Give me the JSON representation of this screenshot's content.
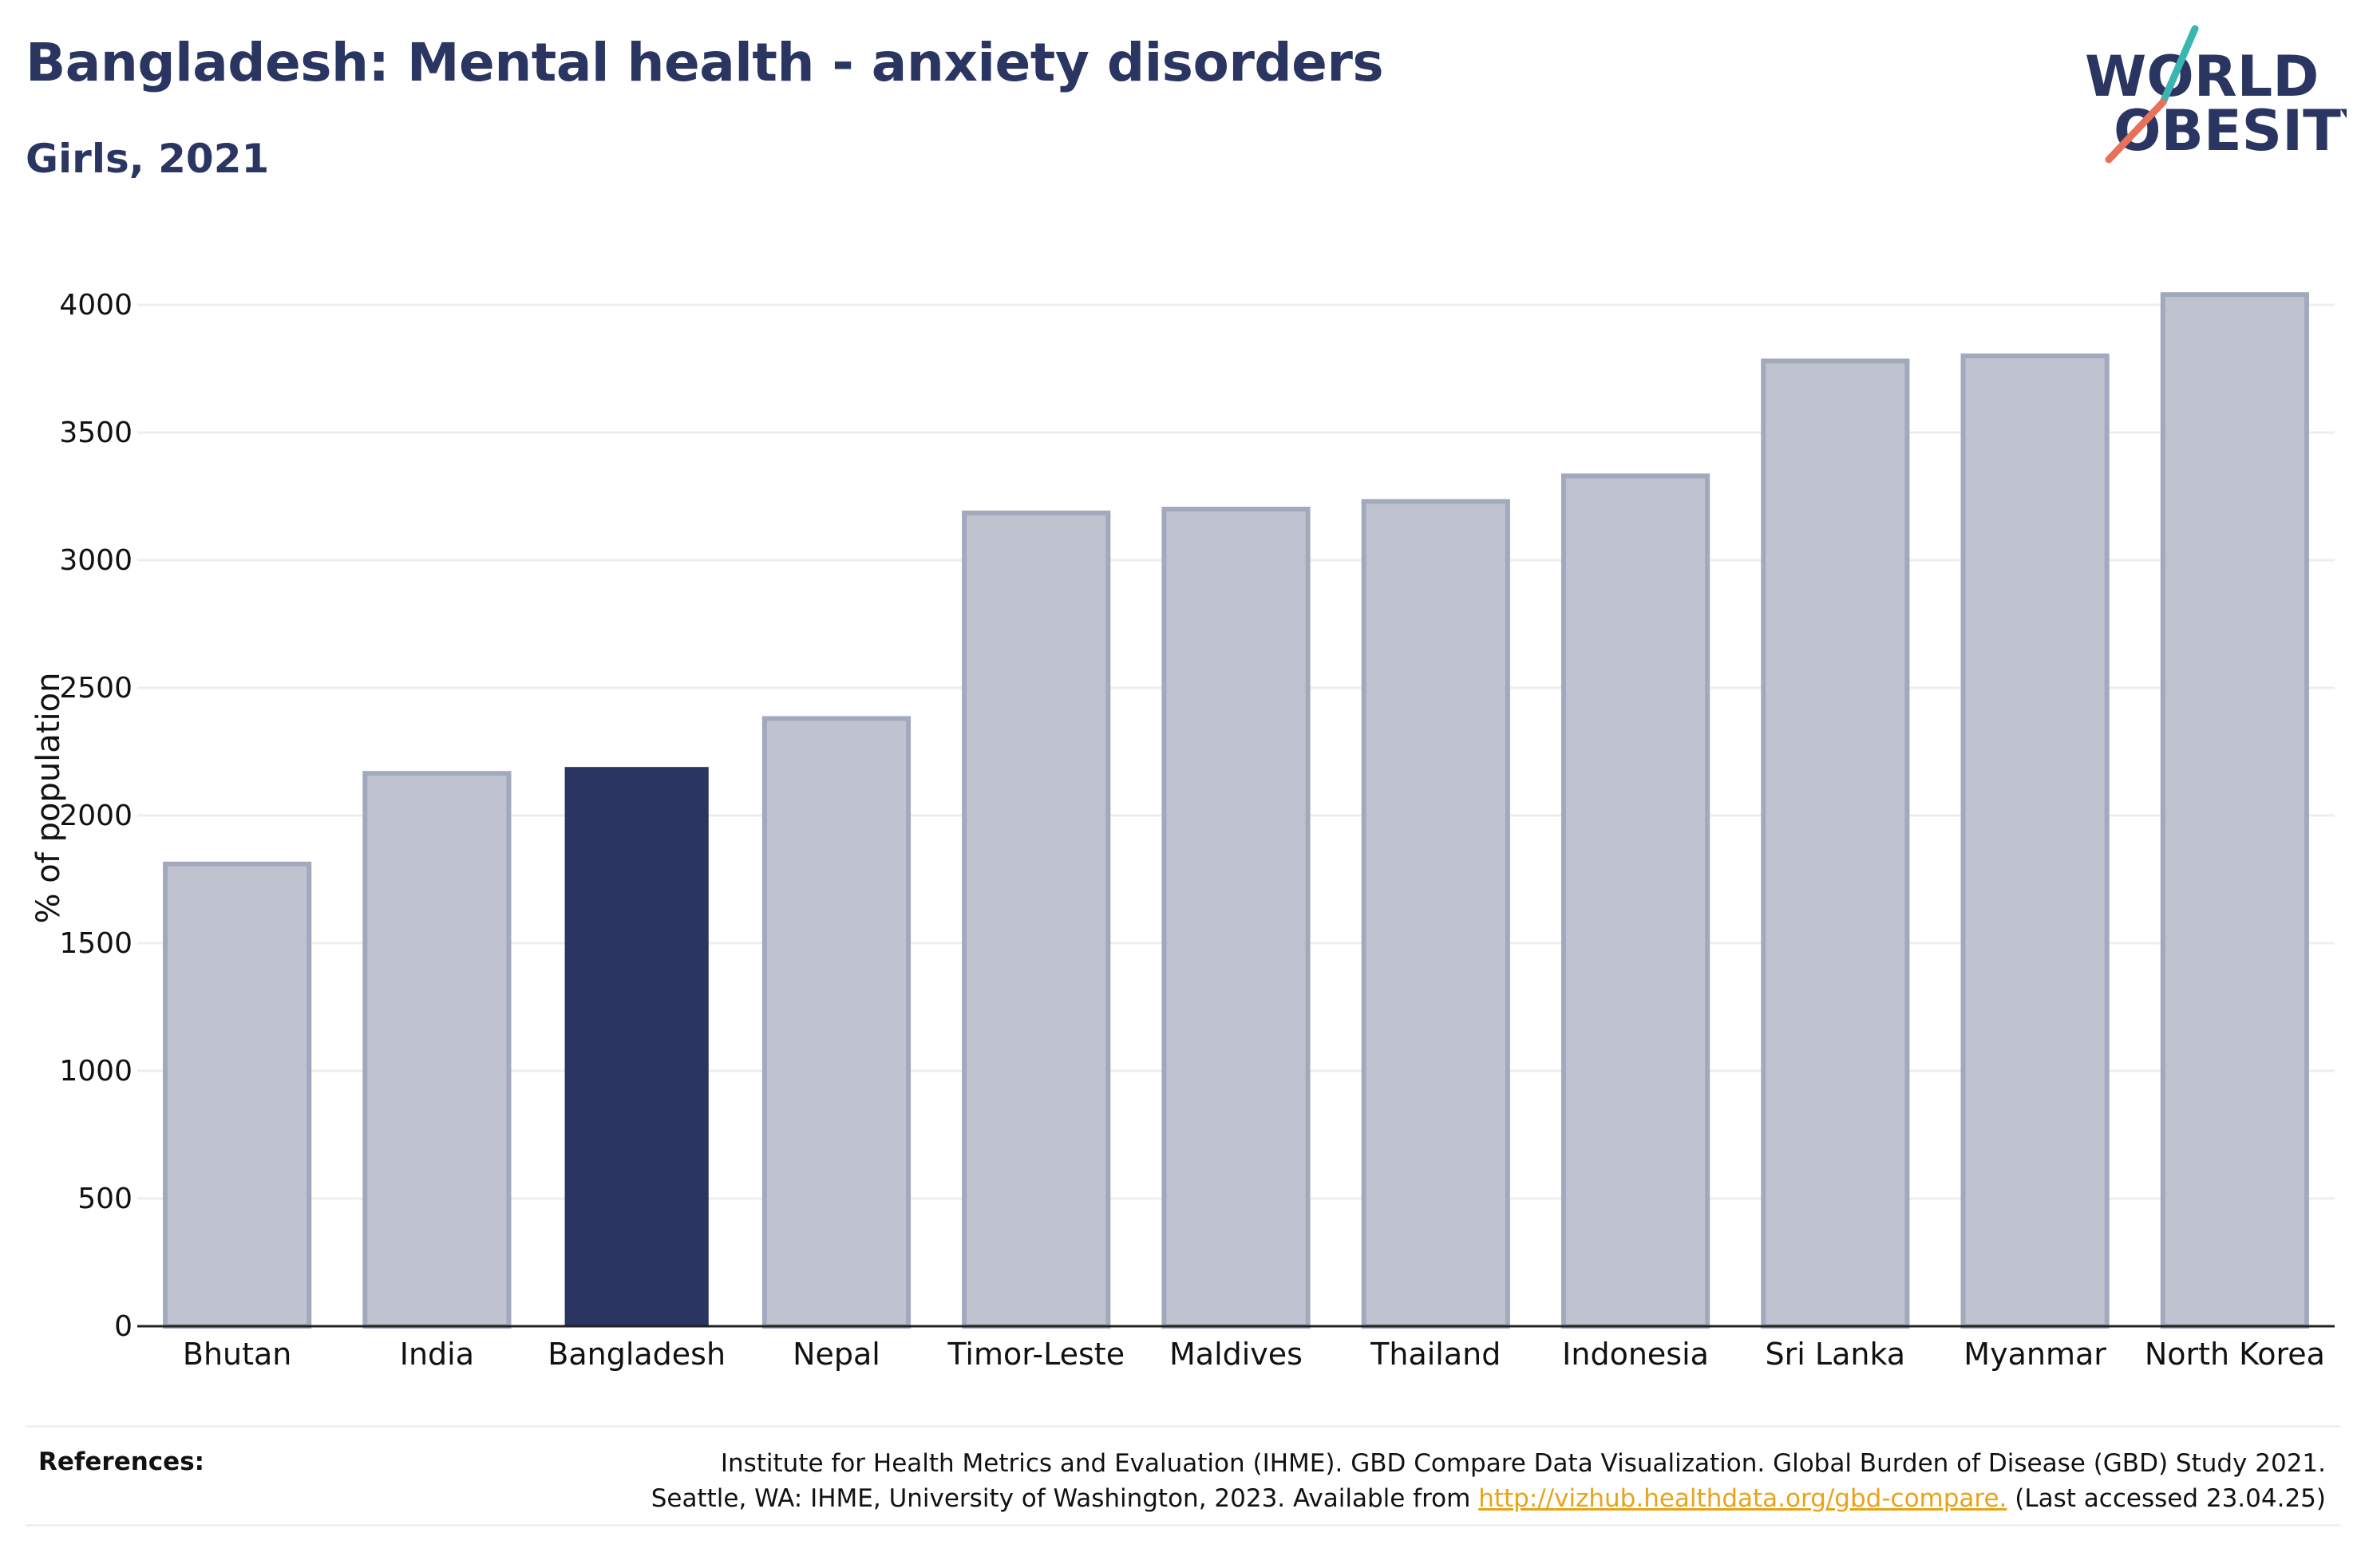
{
  "header": {
    "title": "Bangladesh: Mental health - anxiety disorders",
    "subtitle": "Girls, 2021"
  },
  "logo": {
    "line1": "WORLD",
    "line2": "OBESITY",
    "icon": "world-obesity-slash-logo"
  },
  "colors": {
    "highlight_bar": "#2a3561",
    "other_bar": "#bfc3d0",
    "other_bar_border": "#a3a9bd",
    "gridline": "#eceef2",
    "text": "#2a3561",
    "link": "#e8a317"
  },
  "chart_data": {
    "type": "bar",
    "title": "Bangladesh: Mental health - anxiety disorders",
    "subtitle": "Girls, 2021",
    "xlabel": "",
    "ylabel": "% of population",
    "categories": [
      "Bhutan",
      "India",
      "Bangladesh",
      "Nepal",
      "Timor-Leste",
      "Maldives",
      "Thailand",
      "Indonesia",
      "Sri Lanka",
      "Myanmar",
      "North Korea"
    ],
    "values": [
      1810,
      2165,
      2190,
      2380,
      3185,
      3200,
      3230,
      3330,
      3780,
      3800,
      4040
    ],
    "highlight": "Bangladesh",
    "ylim": [
      0,
      4100
    ],
    "yticks": [
      0,
      500,
      1000,
      1500,
      2000,
      2500,
      3000,
      3500,
      4000
    ],
    "grid": true,
    "legend": "none"
  },
  "references": {
    "label": "References:",
    "line1": "Institute for Health Metrics and Evaluation (IHME). GBD Compare Data Visualization. Global Burden of Disease (GBD) Study 2021.",
    "line2_prefix": "Seattle, WA: IHME, University of Washington, 2023. Available from ",
    "link": "http://vizhub.healthdata.org/gbd-compare.",
    "line2_suffix": " (Last accessed 23.04.25)"
  }
}
